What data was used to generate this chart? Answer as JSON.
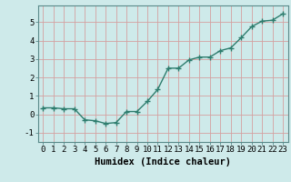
{
  "x": [
    0,
    1,
    2,
    3,
    4,
    5,
    6,
    7,
    8,
    9,
    10,
    11,
    12,
    13,
    14,
    15,
    16,
    17,
    18,
    19,
    20,
    21,
    22,
    23
  ],
  "y": [
    0.35,
    0.35,
    0.3,
    0.3,
    -0.3,
    -0.35,
    -0.5,
    -0.45,
    0.15,
    0.15,
    0.7,
    1.35,
    2.5,
    2.5,
    2.95,
    3.1,
    3.1,
    3.45,
    3.6,
    4.15,
    4.75,
    5.05,
    5.1,
    5.45
  ],
  "line_color": "#2e7d6e",
  "marker": "+",
  "markersize": 4,
  "linewidth": 1.0,
  "background_color": "#ceeaea",
  "grid_color": "#b0d4d4",
  "xlabel": "Humidex (Indice chaleur)",
  "tick_fontsize": 6.5,
  "xlabel_fontsize": 7.5,
  "xlim": [
    -0.5,
    23.5
  ],
  "ylim": [
    -1.5,
    5.9
  ],
  "yticks": [
    -1,
    0,
    1,
    2,
    3,
    4,
    5
  ],
  "xticks": [
    0,
    1,
    2,
    3,
    4,
    5,
    6,
    7,
    8,
    9,
    10,
    11,
    12,
    13,
    14,
    15,
    16,
    17,
    18,
    19,
    20,
    21,
    22,
    23
  ]
}
